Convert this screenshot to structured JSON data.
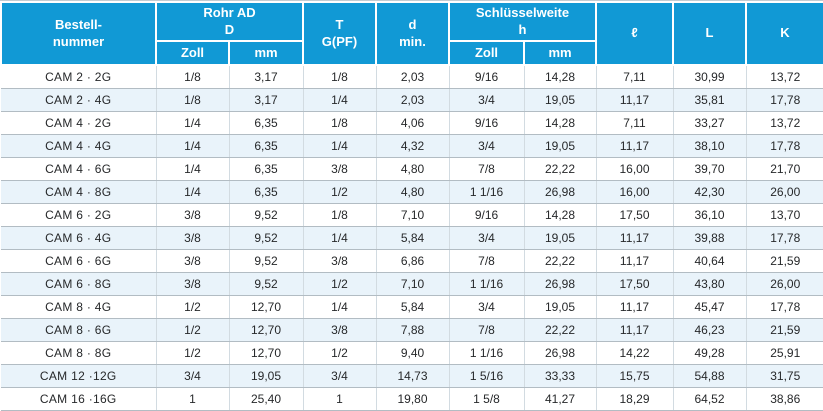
{
  "table": {
    "header": {
      "bestellnummer": "Bestell-\nnummer",
      "rohr_ad": {
        "title": "Rohr AD\nD",
        "col1": "Zoll",
        "col2": "mm"
      },
      "t_gpf": "T\nG(PF)",
      "d_min": "d\nmin.",
      "schluesselweite": {
        "title": "Schlüsselweite\nh",
        "col1": "Zoll",
        "col2": "mm"
      },
      "l_small": "ℓ",
      "l_big": "L",
      "k": "K"
    },
    "column_keys": [
      "bestellnummer",
      "rohr-ad-zoll",
      "rohr-ad-mm",
      "t-gpf",
      "d-min",
      "schluesselweite-zoll",
      "schluesselweite-mm",
      "l-small",
      "l-big",
      "k"
    ],
    "rows": [
      [
        "CAM 2 · 2G",
        "1/8",
        "3,17",
        "1/8",
        "2,03",
        "9/16",
        "14,28",
        "7,11",
        "30,99",
        "13,72"
      ],
      [
        "CAM 2 · 4G",
        "1/8",
        "3,17",
        "1/4",
        "2,03",
        "3/4",
        "19,05",
        "11,17",
        "35,81",
        "17,78"
      ],
      [
        "CAM 4 · 2G",
        "1/4",
        "6,35",
        "1/8",
        "4,06",
        "9/16",
        "14,28",
        "7,11",
        "33,27",
        "13,72"
      ],
      [
        "CAM 4 · 4G",
        "1/4",
        "6,35",
        "1/4",
        "4,32",
        "3/4",
        "19,05",
        "11,17",
        "38,10",
        "17,78"
      ],
      [
        "CAM 4 · 6G",
        "1/4",
        "6,35",
        "3/8",
        "4,80",
        "7/8",
        "22,22",
        "16,00",
        "39,70",
        "21,70"
      ],
      [
        "CAM 4 · 8G",
        "1/4",
        "6,35",
        "1/2",
        "4,80",
        "1 1/16",
        "26,98",
        "16,00",
        "42,30",
        "26,00"
      ],
      [
        "CAM 6 · 2G",
        "3/8",
        "9,52",
        "1/8",
        "7,10",
        "9/16",
        "14,28",
        "17,50",
        "36,10",
        "13,70"
      ],
      [
        "CAM 6 · 4G",
        "3/8",
        "9,52",
        "1/4",
        "5,84",
        "3/4",
        "19,05",
        "11,17",
        "39,88",
        "17,78"
      ],
      [
        "CAM 6 · 6G",
        "3/8",
        "9,52",
        "3/8",
        "6,86",
        "7/8",
        "22,22",
        "11,17",
        "40,64",
        "21,59"
      ],
      [
        "CAM 6 · 8G",
        "3/8",
        "9,52",
        "1/2",
        "7,10",
        "1 1/16",
        "26,98",
        "17,50",
        "43,80",
        "26,00"
      ],
      [
        "CAM 8 · 4G",
        "1/2",
        "12,70",
        "1/4",
        "5,84",
        "3/4",
        "19,05",
        "11,17",
        "45,47",
        "17,78"
      ],
      [
        "CAM 8 · 6G",
        "1/2",
        "12,70",
        "3/8",
        "7,88",
        "7/8",
        "22,22",
        "11,17",
        "46,23",
        "21,59"
      ],
      [
        "CAM 8 · 8G",
        "1/2",
        "12,70",
        "1/2",
        "9,40",
        "1 1/16",
        "26,98",
        "14,22",
        "49,28",
        "25,91"
      ],
      [
        "CAM 12 ·12G",
        "3/4",
        "19,05",
        "3/4",
        "14,73",
        "1 5/16",
        "33,33",
        "15,75",
        "54,88",
        "31,75"
      ],
      [
        "CAM 16 ·16G",
        "1",
        "25,40",
        "1",
        "19,80",
        "1 5/8",
        "41,27",
        "18,29",
        "64,52",
        "38,86"
      ]
    ],
    "colors": {
      "header_bg": "#1199d5",
      "header_text": "#ffffff",
      "row_alt_bg": "#e9f3fa",
      "row_border": "#b2bcc3",
      "col_border": "#d2dbe1"
    }
  }
}
